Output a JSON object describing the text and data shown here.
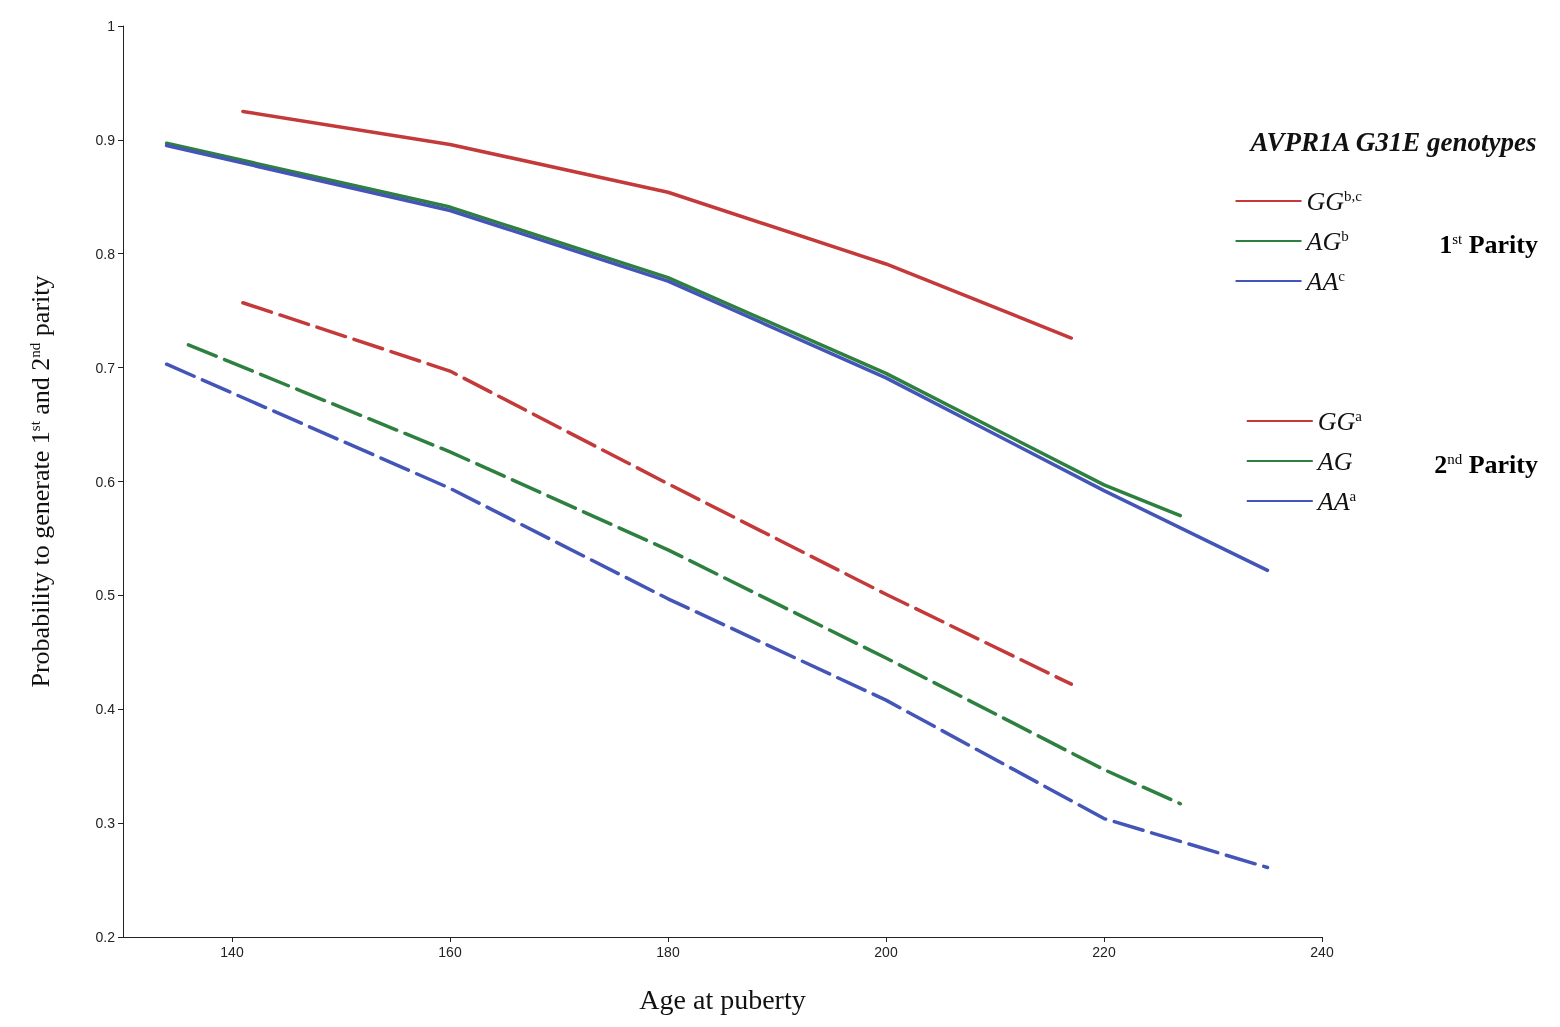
{
  "chart_data": {
    "type": "line",
    "xlabel": "Age at puberty",
    "ylabel": "Probability to generate 1$^{st}$ and 2$^{nd}$ parity",
    "legend_title": "AVPR1A G31E genotypes",
    "legend": "right",
    "grid": false,
    "marker": "none",
    "xlim": [
      130,
      240
    ],
    "xticks": [
      140,
      160,
      180,
      200,
      220,
      240
    ],
    "ylim": [
      0.2,
      1
    ],
    "yticks": [
      0.2,
      0.3,
      0.4,
      0.5,
      0.6,
      0.7,
      0.8,
      0.9,
      1
    ],
    "annotations": [
      "1$^{st}$ Parity",
      "2$^{nd}$ Parity"
    ],
    "series": [
      {
        "name": "GG$^{b,c}$",
        "color": "#c43a3a",
        "line_style": "solid",
        "x": [
          141,
          160,
          180,
          200,
          217
        ],
        "values": [
          0.925,
          0.896,
          0.854,
          0.791,
          0.726
        ]
      },
      {
        "name": "AG$^{b}$",
        "color": "#2e8040",
        "line_style": "solid",
        "x": [
          134,
          160,
          180,
          200,
          220,
          227
        ],
        "values": [
          0.897,
          0.841,
          0.779,
          0.695,
          0.597,
          0.57
        ]
      },
      {
        "name": "AA$^{c}$",
        "color": "#4455b8",
        "line_style": "solid",
        "x": [
          134,
          160,
          180,
          200,
          220,
          235
        ],
        "values": [
          0.895,
          0.838,
          0.776,
          0.691,
          0.592,
          0.522
        ]
      },
      {
        "name": "GG$^{a}$",
        "color": "#c43a3a",
        "line_style": "dashed",
        "x": [
          141,
          160,
          180,
          200,
          217
        ],
        "values": [
          0.757,
          0.697,
          0.598,
          0.501,
          0.422
        ]
      },
      {
        "name": "AG",
        "color": "#2e8040",
        "line_style": "dashed",
        "x": [
          136,
          160,
          180,
          200,
          220,
          227
        ],
        "values": [
          0.72,
          0.626,
          0.54,
          0.445,
          0.347,
          0.317
        ]
      },
      {
        "name": "AA$^{a}$",
        "color": "#4455b8",
        "line_style": "dashed",
        "x": [
          134,
          160,
          180,
          200,
          220,
          235
        ],
        "values": [
          0.703,
          0.594,
          0.497,
          0.408,
          0.304,
          0.261
        ]
      }
    ]
  }
}
